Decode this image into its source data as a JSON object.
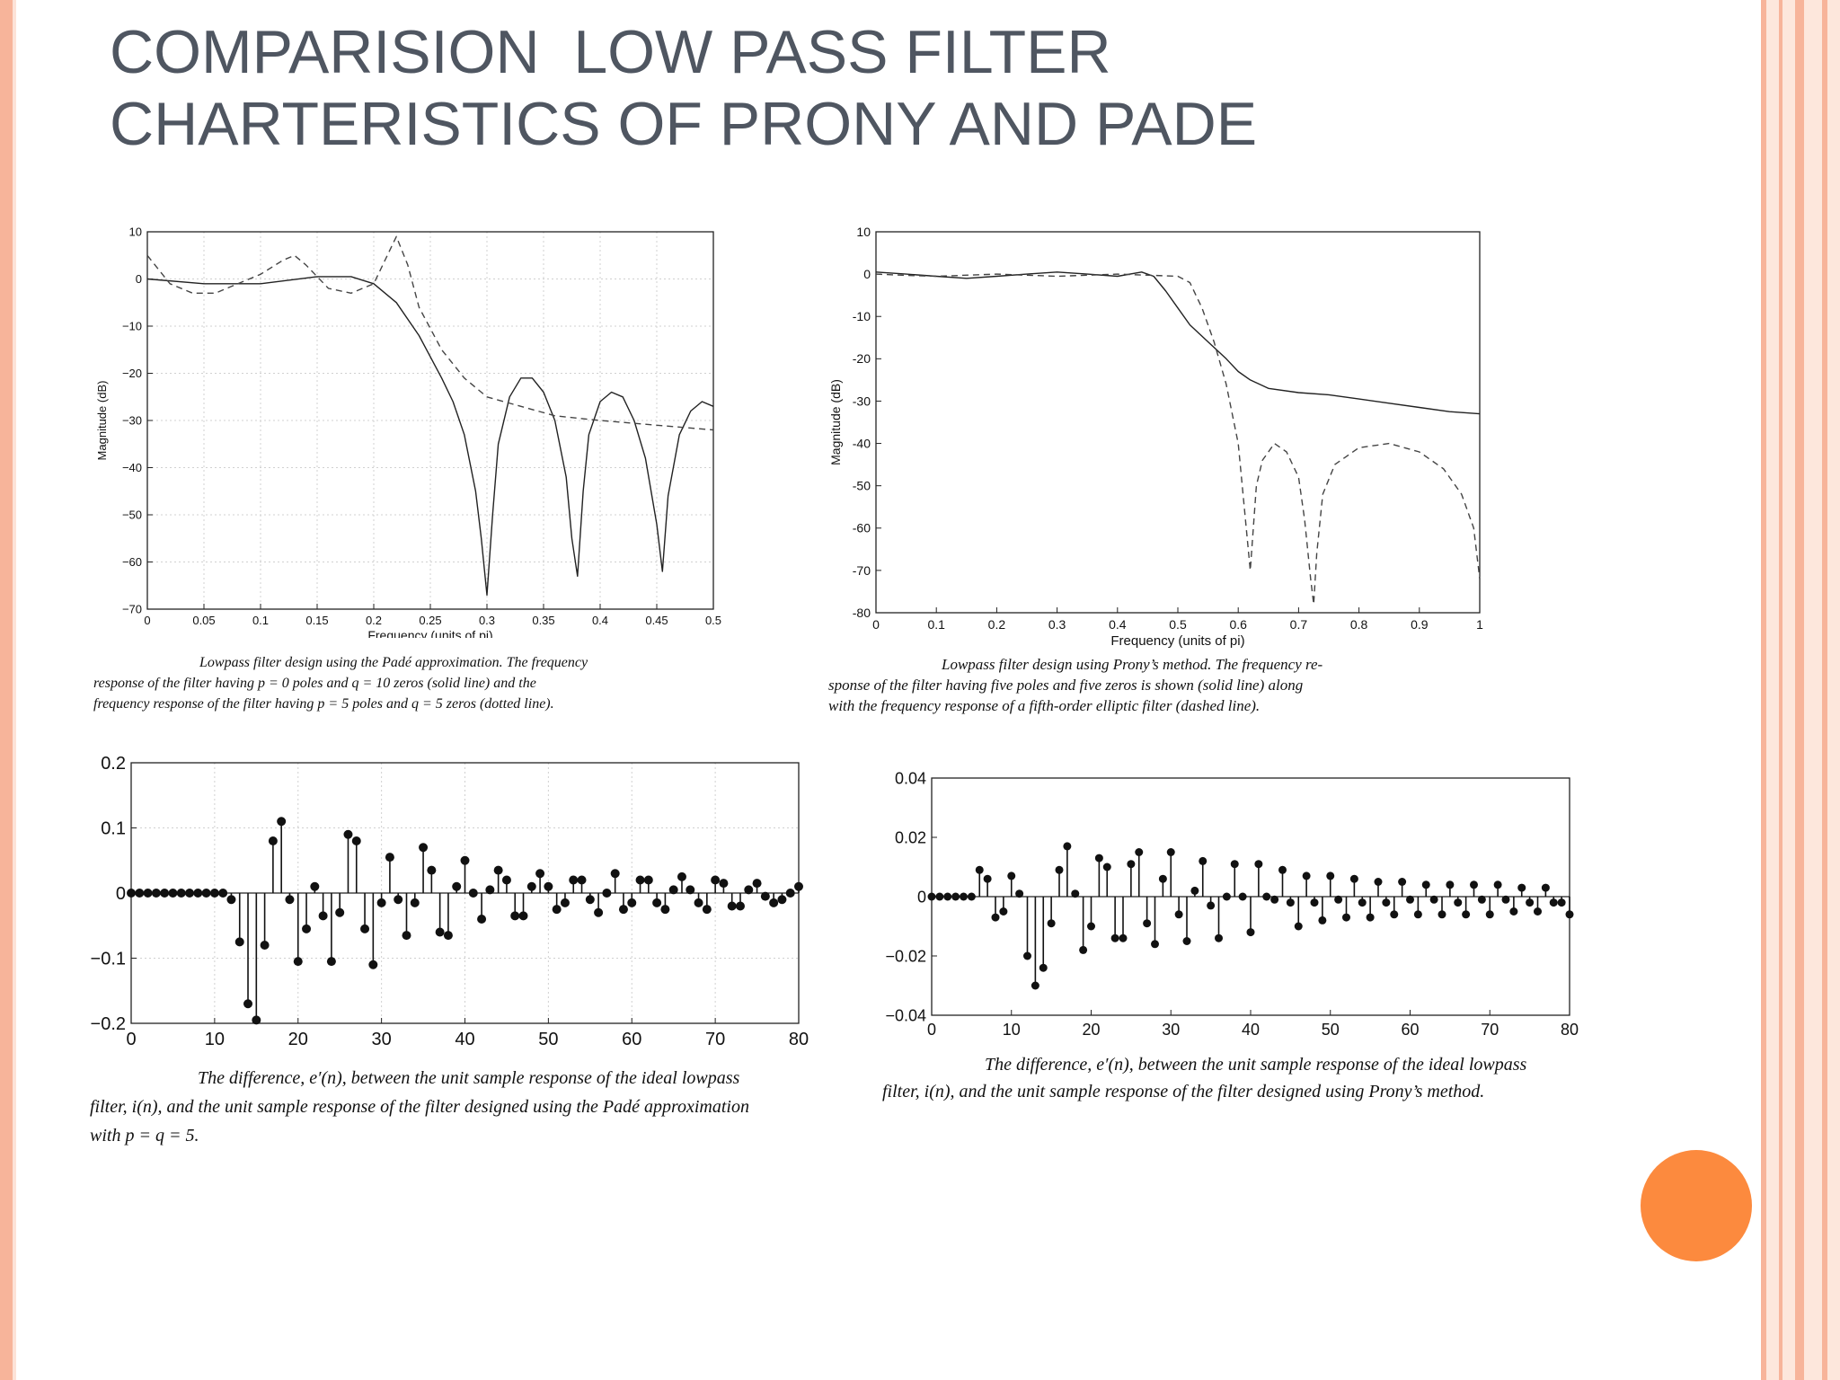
{
  "slide": {
    "title_line1": "COMPARISION  LOW PASS FILTER",
    "title_line2": "CHARTERISTICS OF PRONY AND PADE",
    "accent_color": "#fc8a3e",
    "border_color": "#f7b49a",
    "title_color": "#4f5661"
  },
  "captions": {
    "pade_lowpass": [
      "Lowpass filter design using the Padé approximation. The frequency",
      "response of the filter having p = 0 poles and q = 10 zeros (solid line) and the",
      "frequency response of the filter having p = 5 poles and q = 5 zeros (dotted line)."
    ],
    "prony_lowpass": [
      "Lowpass filter design using Prony’s method. The frequency re-",
      "sponse of the filter having five poles and five zeros is shown (solid line) along",
      "with the frequency response of a fifth-order elliptic filter (dashed line)."
    ],
    "pade_error": [
      "The difference, e′(n), between the unit sample response of the ideal lowpass",
      "filter, i(n), and the unit sample response of the filter designed using the Padé approximation",
      "with p = q = 5."
    ],
    "prony_error": [
      "The difference, e′(n), between the unit sample response of the ideal lowpass",
      "filter, i(n), and the unit sample response of the filter designed using Prony’s method."
    ]
  },
  "chart_data": [
    {
      "id": "pade_freq",
      "type": "line",
      "xlabel": "Frequency (units of pi)",
      "ylabel": "Magnitude (dB)",
      "xlim": [
        0,
        0.5
      ],
      "ylim": [
        -70,
        10
      ],
      "xticks": [
        0,
        0.05,
        0.1,
        0.15,
        0.2,
        0.25,
        0.3,
        0.35,
        0.4,
        0.45,
        0.5
      ],
      "xtick_labels": [
        "0",
        "0.05",
        "0.1",
        "0.15",
        "0.2",
        "0.25",
        "0.3",
        "0.35",
        "0.4",
        "0.45",
        "0.5"
      ],
      "yticks": [
        10,
        0,
        -10,
        -20,
        -30,
        -40,
        -50,
        -60,
        -70
      ],
      "ytick_labels": [
        "10",
        "0",
        "−10",
        "−20",
        "−30",
        "−40",
        "−50",
        "−60",
        "−70"
      ],
      "grid": true,
      "series": [
        {
          "style": "solid",
          "x": [
            0,
            0.05,
            0.1,
            0.15,
            0.18,
            0.2,
            0.22,
            0.24,
            0.26,
            0.27,
            0.28,
            0.29,
            0.295,
            0.3,
            0.305,
            0.31,
            0.32,
            0.33,
            0.34,
            0.35,
            0.36,
            0.37,
            0.375,
            0.38,
            0.385,
            0.39,
            0.4,
            0.41,
            0.42,
            0.43,
            0.44,
            0.45,
            0.455,
            0.46,
            0.47,
            0.48,
            0.49,
            0.5
          ],
          "y": [
            0,
            -1,
            -1,
            0.5,
            0.5,
            -1,
            -5,
            -12,
            -21,
            -26,
            -33,
            -45,
            -55,
            -67,
            -50,
            -35,
            -25,
            -21,
            -21,
            -24,
            -30,
            -42,
            -55,
            -63,
            -45,
            -33,
            -26,
            -24,
            -25,
            -30,
            -38,
            -52,
            -62,
            -46,
            -33,
            -28,
            -26,
            -27
          ]
        },
        {
          "style": "dashed",
          "x": [
            0,
            0.02,
            0.04,
            0.06,
            0.08,
            0.1,
            0.12,
            0.13,
            0.14,
            0.16,
            0.18,
            0.2,
            0.21,
            0.22,
            0.23,
            0.24,
            0.26,
            0.28,
            0.3,
            0.33,
            0.36,
            0.4,
            0.45,
            0.5
          ],
          "y": [
            5,
            -1,
            -3,
            -3,
            -1,
            1,
            4,
            5,
            3,
            -2,
            -3,
            -1,
            4,
            9,
            3,
            -6,
            -15,
            -21,
            -25,
            -27,
            -29,
            -30,
            -31,
            -32
          ]
        }
      ]
    },
    {
      "id": "prony_freq",
      "type": "line",
      "xlabel": "Frequency (units of pi)",
      "ylabel": "Magnitude (dB)",
      "xlim": [
        0,
        1
      ],
      "ylim": [
        -80,
        10
      ],
      "xticks": [
        0,
        0.1,
        0.2,
        0.3,
        0.4,
        0.5,
        0.6,
        0.7,
        0.8,
        0.9,
        1
      ],
      "xtick_labels": [
        "0",
        "0.1",
        "0.2",
        "0.3",
        "0.4",
        "0.5",
        "0.6",
        "0.7",
        "0.8",
        "0.9",
        "1"
      ],
      "yticks": [
        10,
        0,
        -10,
        -20,
        -30,
        -40,
        -50,
        -60,
        -70,
        -80
      ],
      "ytick_labels": [
        "10",
        "0",
        "-10",
        "-20",
        "-30",
        "-40",
        "-50",
        "-60",
        "-70",
        "-80"
      ],
      "grid": false,
      "series": [
        {
          "style": "solid",
          "x": [
            0,
            0.05,
            0.1,
            0.15,
            0.2,
            0.25,
            0.3,
            0.35,
            0.4,
            0.44,
            0.46,
            0.48,
            0.5,
            0.52,
            0.55,
            0.58,
            0.6,
            0.62,
            0.65,
            0.7,
            0.75,
            0.8,
            0.85,
            0.9,
            0.95,
            1.0
          ],
          "y": [
            0.5,
            0,
            -0.5,
            -1,
            -0.5,
            0,
            0.5,
            0,
            -0.5,
            0.5,
            -0.5,
            -4,
            -8,
            -12,
            -16,
            -20,
            -23,
            -25,
            -27,
            -28,
            -28.5,
            -29.5,
            -30.5,
            -31.5,
            -32.5,
            -33
          ]
        },
        {
          "style": "dashed",
          "x": [
            0,
            0.05,
            0.1,
            0.2,
            0.3,
            0.4,
            0.5,
            0.52,
            0.54,
            0.56,
            0.58,
            0.6,
            0.61,
            0.62,
            0.625,
            0.63,
            0.64,
            0.66,
            0.68,
            0.7,
            0.71,
            0.72,
            0.725,
            0.73,
            0.74,
            0.76,
            0.8,
            0.85,
            0.9,
            0.94,
            0.97,
            0.99,
            1.0
          ],
          "y": [
            0,
            -0.3,
            -0.5,
            0,
            -0.5,
            0,
            -0.5,
            -2,
            -8,
            -16,
            -26,
            -40,
            -55,
            -70,
            -60,
            -50,
            -44,
            -40,
            -42,
            -48,
            -58,
            -72,
            -78,
            -66,
            -52,
            -45,
            -41,
            -40,
            -42,
            -46,
            -52,
            -60,
            -72
          ]
        }
      ]
    },
    {
      "id": "pade_error",
      "type": "stem",
      "xlim": [
        0,
        80
      ],
      "ylim": [
        -0.2,
        0.2
      ],
      "xticks": [
        0,
        10,
        20,
        30,
        40,
        50,
        60,
        70,
        80
      ],
      "xtick_labels": [
        "0",
        "10",
        "20",
        "30",
        "40",
        "50",
        "60",
        "70",
        "80"
      ],
      "yticks": [
        0.2,
        0.1,
        0,
        -0.1,
        -0.2
      ],
      "ytick_labels": [
        "0.2",
        "0.1",
        "0",
        "−0.1",
        "−0.2"
      ],
      "grid": true,
      "values": [
        0,
        0,
        0,
        0,
        0,
        0,
        0,
        0,
        0,
        0,
        0,
        0,
        -0.01,
        -0.075,
        -0.17,
        -0.195,
        -0.08,
        0.08,
        0.11,
        -0.01,
        -0.105,
        -0.055,
        0.01,
        -0.035,
        -0.105,
        -0.03,
        0.09,
        0.08,
        -0.055,
        -0.11,
        -0.015,
        0.055,
        -0.01,
        -0.065,
        -0.015,
        0.07,
        0.035,
        -0.06,
        -0.065,
        0.01,
        0.05,
        0,
        -0.04,
        0.005,
        0.035,
        0.02,
        -0.035,
        -0.035,
        0.01,
        0.03,
        0.01,
        -0.025,
        -0.015,
        0.02,
        0.02,
        -0.01,
        -0.03,
        0,
        0.03,
        -0.025,
        -0.015,
        0.02,
        0.02,
        -0.015,
        -0.025,
        0.005,
        0.025,
        0.005,
        -0.015,
        -0.025,
        0.02,
        0.015,
        -0.02,
        -0.02,
        0.005,
        0.015,
        -0.005,
        -0.015,
        -0.01,
        0,
        0.01
      ]
    },
    {
      "id": "prony_error",
      "type": "stem",
      "xlim": [
        0,
        80
      ],
      "ylim": [
        -0.04,
        0.04
      ],
      "xticks": [
        0,
        10,
        20,
        30,
        40,
        50,
        60,
        70,
        80
      ],
      "xtick_labels": [
        "0",
        "10",
        "20",
        "30",
        "40",
        "50",
        "60",
        "70",
        "80"
      ],
      "yticks": [
        0.04,
        0.02,
        0,
        -0.02,
        -0.04
      ],
      "ytick_labels": [
        "0.04",
        "0.02",
        "0",
        "−0.02",
        "−0.04"
      ],
      "grid": false,
      "values": [
        0,
        0,
        0,
        0,
        0,
        0,
        0.009,
        0.006,
        -0.007,
        -0.005,
        0.007,
        0.001,
        -0.02,
        -0.03,
        -0.024,
        -0.009,
        0.009,
        0.017,
        0.001,
        -0.018,
        -0.01,
        0.013,
        0.01,
        -0.014,
        -0.014,
        0.011,
        0.015,
        -0.009,
        -0.016,
        0.006,
        0.015,
        -0.006,
        -0.015,
        0.002,
        0.012,
        -0.003,
        -0.014,
        0.0,
        0.011,
        0.0,
        -0.012,
        0.011,
        0.0,
        -0.001,
        0.009,
        -0.002,
        -0.01,
        0.007,
        -0.002,
        -0.008,
        0.007,
        -0.001,
        -0.007,
        0.006,
        -0.002,
        -0.007,
        0.005,
        -0.002,
        -0.006,
        0.005,
        -0.001,
        -0.006,
        0.004,
        -0.001,
        -0.006,
        0.004,
        -0.002,
        -0.006,
        0.004,
        -0.001,
        -0.006,
        0.004,
        -0.001,
        -0.005,
        0.003,
        -0.002,
        -0.005,
        0.003,
        -0.002,
        -0.002,
        -0.006
      ]
    }
  ]
}
